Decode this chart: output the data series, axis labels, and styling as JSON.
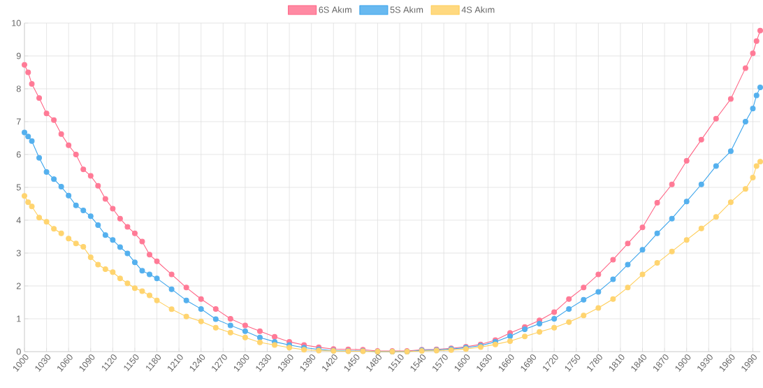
{
  "chart_data": {
    "type": "line",
    "legend": "top",
    "grid": true,
    "marker": "circle",
    "xlim": [
      1000,
      2000
    ],
    "ylim": [
      0,
      10
    ],
    "xticks": [
      1000,
      1030,
      1060,
      1090,
      1120,
      1150,
      1180,
      1210,
      1240,
      1270,
      1300,
      1330,
      1360,
      1390,
      1420,
      1450,
      1480,
      1510,
      1540,
      1570,
      1600,
      1630,
      1660,
      1690,
      1720,
      1750,
      1780,
      1810,
      1840,
      1870,
      1900,
      1930,
      1960,
      1990
    ],
    "yticks": [
      0,
      1,
      2,
      3,
      4,
      5,
      6,
      7,
      8,
      9,
      10
    ],
    "x": [
      1000,
      1005,
      1010,
      1020,
      1030,
      1040,
      1050,
      1060,
      1070,
      1080,
      1090,
      1100,
      1110,
      1120,
      1130,
      1140,
      1150,
      1160,
      1170,
      1180,
      1200,
      1220,
      1240,
      1260,
      1280,
      1300,
      1320,
      1340,
      1360,
      1380,
      1400,
      1420,
      1440,
      1460,
      1480,
      1500,
      1520,
      1540,
      1560,
      1580,
      1600,
      1620,
      1640,
      1660,
      1680,
      1700,
      1720,
      1740,
      1760,
      1780,
      1800,
      1820,
      1840,
      1860,
      1880,
      1900,
      1920,
      1940,
      1960,
      1980,
      1990,
      1995,
      2000
    ],
    "series": [
      {
        "name": "6S Akım",
        "color": "#ff6384",
        "values": [
          8.73,
          8.5,
          8.15,
          7.72,
          7.25,
          7.05,
          6.62,
          6.28,
          6.0,
          5.55,
          5.35,
          5.05,
          4.65,
          4.35,
          4.05,
          3.8,
          3.6,
          3.35,
          2.95,
          2.75,
          2.35,
          1.95,
          1.6,
          1.3,
          1.0,
          0.8,
          0.62,
          0.45,
          0.3,
          0.2,
          0.13,
          0.08,
          0.07,
          0.06,
          0.02,
          0.02,
          0.02,
          0.06,
          0.07,
          0.1,
          0.15,
          0.22,
          0.35,
          0.57,
          0.75,
          0.95,
          1.2,
          1.6,
          1.95,
          2.35,
          2.8,
          3.29,
          3.78,
          4.53,
          5.09,
          5.81,
          6.45,
          7.09,
          7.69,
          8.63,
          9.08,
          9.45,
          9.77
        ]
      },
      {
        "name": "5S Akım",
        "color": "#36a2eb",
        "values": [
          6.67,
          6.55,
          6.41,
          5.9,
          5.47,
          5.25,
          5.02,
          4.75,
          4.45,
          4.3,
          4.12,
          3.85,
          3.55,
          3.4,
          3.18,
          2.99,
          2.72,
          2.46,
          2.35,
          2.23,
          1.9,
          1.56,
          1.3,
          0.99,
          0.8,
          0.62,
          0.43,
          0.3,
          0.2,
          0.12,
          0.07,
          0.03,
          0.02,
          0.02,
          0.0,
          0.0,
          0.0,
          0.04,
          0.05,
          0.08,
          0.12,
          0.18,
          0.3,
          0.47,
          0.68,
          0.85,
          1.0,
          1.3,
          1.58,
          1.82,
          2.2,
          2.65,
          3.1,
          3.6,
          4.05,
          4.57,
          5.09,
          5.65,
          6.1,
          7.0,
          7.4,
          7.8,
          8.04
        ]
      },
      {
        "name": "4S Akım",
        "color": "#ffcd56",
        "x": [
          1000,
          1005,
          1010,
          1020,
          1030,
          1040,
          1050,
          1055,
          1060,
          1070,
          1080,
          1090,
          1100,
          1110,
          1120,
          1130,
          1140,
          1150,
          1160,
          1170,
          1180,
          1200,
          1220,
          1240,
          1260,
          1280,
          1300,
          1320,
          1340,
          1360,
          1380,
          1400,
          1420,
          1440,
          1460,
          1480,
          1500,
          1520,
          1540,
          1560,
          1580,
          1600,
          1620,
          1640,
          1660,
          1680,
          1700,
          1720,
          1740,
          1760,
          1780,
          1800,
          1820,
          1840,
          1860,
          1880,
          1900,
          1920,
          1940,
          1960,
          1980,
          1990,
          1995,
          2000
        ],
        "values": [
          4.74,
          4.55,
          4.42,
          4.08,
          3.95,
          3.74,
          3.6,
          null,
          3.44,
          3.29,
          3.19,
          2.87,
          2.65,
          2.51,
          2.42,
          2.23,
          2.08,
          1.93,
          1.84,
          1.71,
          1.56,
          1.29,
          1.07,
          0.92,
          0.73,
          0.58,
          0.43,
          0.28,
          0.2,
          0.12,
          0.06,
          0.03,
          0.02,
          0.01,
          0.01,
          0.0,
          0.0,
          0.0,
          0.02,
          0.03,
          0.05,
          0.08,
          0.14,
          0.22,
          0.32,
          0.46,
          0.6,
          0.73,
          0.9,
          1.1,
          1.33,
          1.6,
          1.95,
          2.35,
          2.7,
          3.05,
          3.4,
          3.75,
          4.1,
          4.55,
          4.95,
          5.3,
          5.65,
          5.78
        ]
      }
    ]
  }
}
